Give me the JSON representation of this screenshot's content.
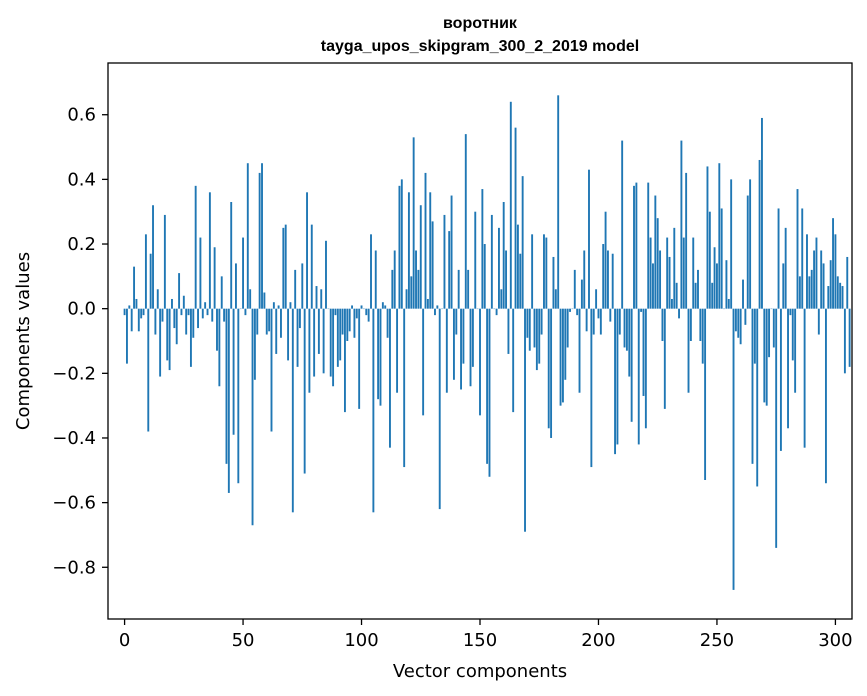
{
  "chart_data": {
    "type": "bar",
    "title": "воротник",
    "subtitle": "tayga_upos_skipgram_300_2_2019 model",
    "xlabel": "Vector components",
    "ylabel": "Components values",
    "xlim": [
      -7,
      307
    ],
    "ylim": [
      -0.96,
      0.76
    ],
    "xticks": [
      0,
      50,
      100,
      150,
      200,
      250,
      300
    ],
    "yticks": [
      -0.8,
      -0.6,
      -0.4,
      -0.2,
      0.0,
      0.2,
      0.4,
      0.6
    ],
    "ytick_labels": [
      "−0.8",
      "−0.6",
      "−0.4",
      "−0.2",
      "0.0",
      "0.2",
      "0.4",
      "0.6"
    ],
    "bar_color": "#1f77b4",
    "grid": false,
    "legend": "none",
    "values": [
      -0.02,
      -0.17,
      0.01,
      -0.07,
      0.13,
      0.03,
      -0.07,
      -0.03,
      -0.02,
      0.23,
      -0.38,
      0.17,
      0.32,
      -0.08,
      0.06,
      -0.21,
      -0.04,
      0.29,
      -0.16,
      -0.19,
      0.03,
      -0.06,
      -0.11,
      0.11,
      -0.02,
      0.04,
      -0.08,
      -0.02,
      -0.18,
      -0.09,
      0.38,
      -0.06,
      0.22,
      -0.03,
      0.02,
      -0.02,
      0.36,
      -0.04,
      0.19,
      -0.13,
      -0.24,
      0.1,
      -0.04,
      -0.48,
      -0.57,
      0.33,
      -0.39,
      0.14,
      -0.54,
      0.0,
      0.22,
      -0.02,
      0.45,
      0.06,
      -0.67,
      -0.22,
      -0.08,
      0.42,
      0.45,
      0.05,
      -0.08,
      -0.07,
      -0.38,
      0.02,
      -0.14,
      0.01,
      -0.09,
      0.25,
      0.26,
      -0.16,
      0.02,
      -0.63,
      0.12,
      -0.18,
      -0.06,
      0.14,
      -0.51,
      0.36,
      -0.26,
      0.26,
      -0.21,
      0.07,
      -0.14,
      0.06,
      -0.2,
      0.21,
      0.0,
      -0.21,
      -0.24,
      -0.02,
      -0.18,
      -0.16,
      -0.08,
      -0.32,
      -0.1,
      -0.07,
      0.01,
      -0.09,
      -0.03,
      -0.31,
      0.01,
      0.0,
      -0.02,
      -0.04,
      0.23,
      -0.63,
      0.18,
      -0.28,
      -0.3,
      0.02,
      0.01,
      -0.09,
      -0.43,
      0.12,
      0.18,
      -0.26,
      0.38,
      0.4,
      -0.49,
      0.06,
      0.36,
      0.1,
      0.53,
      0.18,
      0.12,
      0.32,
      -0.33,
      0.42,
      0.03,
      0.36,
      0.27,
      -0.02,
      0.01,
      -0.62,
      0.0,
      0.29,
      -0.26,
      0.24,
      0.35,
      -0.22,
      -0.08,
      0.12,
      -0.25,
      -0.17,
      0.54,
      0.12,
      -0.24,
      -0.18,
      0.3,
      0.0,
      -0.33,
      0.37,
      0.2,
      -0.48,
      -0.52,
      0.29,
      0.0,
      -0.02,
      0.25,
      0.06,
      0.33,
      0.18,
      -0.14,
      0.64,
      -0.32,
      0.56,
      0.26,
      0.17,
      0.41,
      -0.69,
      -0.09,
      -0.13,
      0.23,
      -0.12,
      -0.19,
      -0.17,
      -0.08,
      0.23,
      0.22,
      -0.37,
      -0.4,
      0.16,
      0.06,
      0.66,
      -0.3,
      -0.29,
      -0.22,
      -0.12,
      -0.01,
      0.0,
      0.12,
      -0.02,
      -0.26,
      0.09,
      0.18,
      -0.07,
      0.43,
      -0.49,
      -0.08,
      0.06,
      -0.03,
      -0.08,
      0.2,
      0.3,
      0.18,
      -0.04,
      0.17,
      -0.45,
      -0.42,
      -0.08,
      0.52,
      -0.12,
      -0.13,
      -0.21,
      -0.35,
      0.38,
      0.39,
      -0.42,
      -0.01,
      -0.27,
      -0.37,
      0.39,
      0.22,
      0.14,
      0.35,
      0.28,
      0.18,
      -0.1,
      -0.31,
      0.22,
      0.16,
      0.03,
      0.25,
      0.08,
      -0.03,
      0.52,
      0.22,
      0.42,
      -0.26,
      -0.1,
      0.22,
      0.08,
      0.12,
      -0.1,
      -0.17,
      -0.53,
      0.44,
      0.3,
      0.08,
      0.19,
      0.14,
      0.45,
      0.31,
      0.0,
      0.15,
      0.03,
      0.4,
      -0.87,
      -0.07,
      -0.09,
      -0.11,
      0.09,
      -0.05,
      0.35,
      0.4,
      -0.48,
      -0.17,
      -0.55,
      0.46,
      0.59,
      -0.29,
      -0.3,
      -0.15,
      0.0,
      -0.12,
      -0.74,
      0.31,
      -0.44,
      0.14,
      0.25,
      -0.37,
      -0.02,
      -0.16,
      -0.26,
      0.37,
      0.1,
      0.31,
      -0.43,
      0.23,
      0.1,
      0.12,
      0.18,
      0.22,
      -0.08,
      0.18,
      0.14,
      -0.54,
      0.07,
      0.15,
      0.28,
      0.23,
      0.1,
      0.08,
      0.07,
      -0.2,
      0.16,
      -0.18
    ]
  }
}
